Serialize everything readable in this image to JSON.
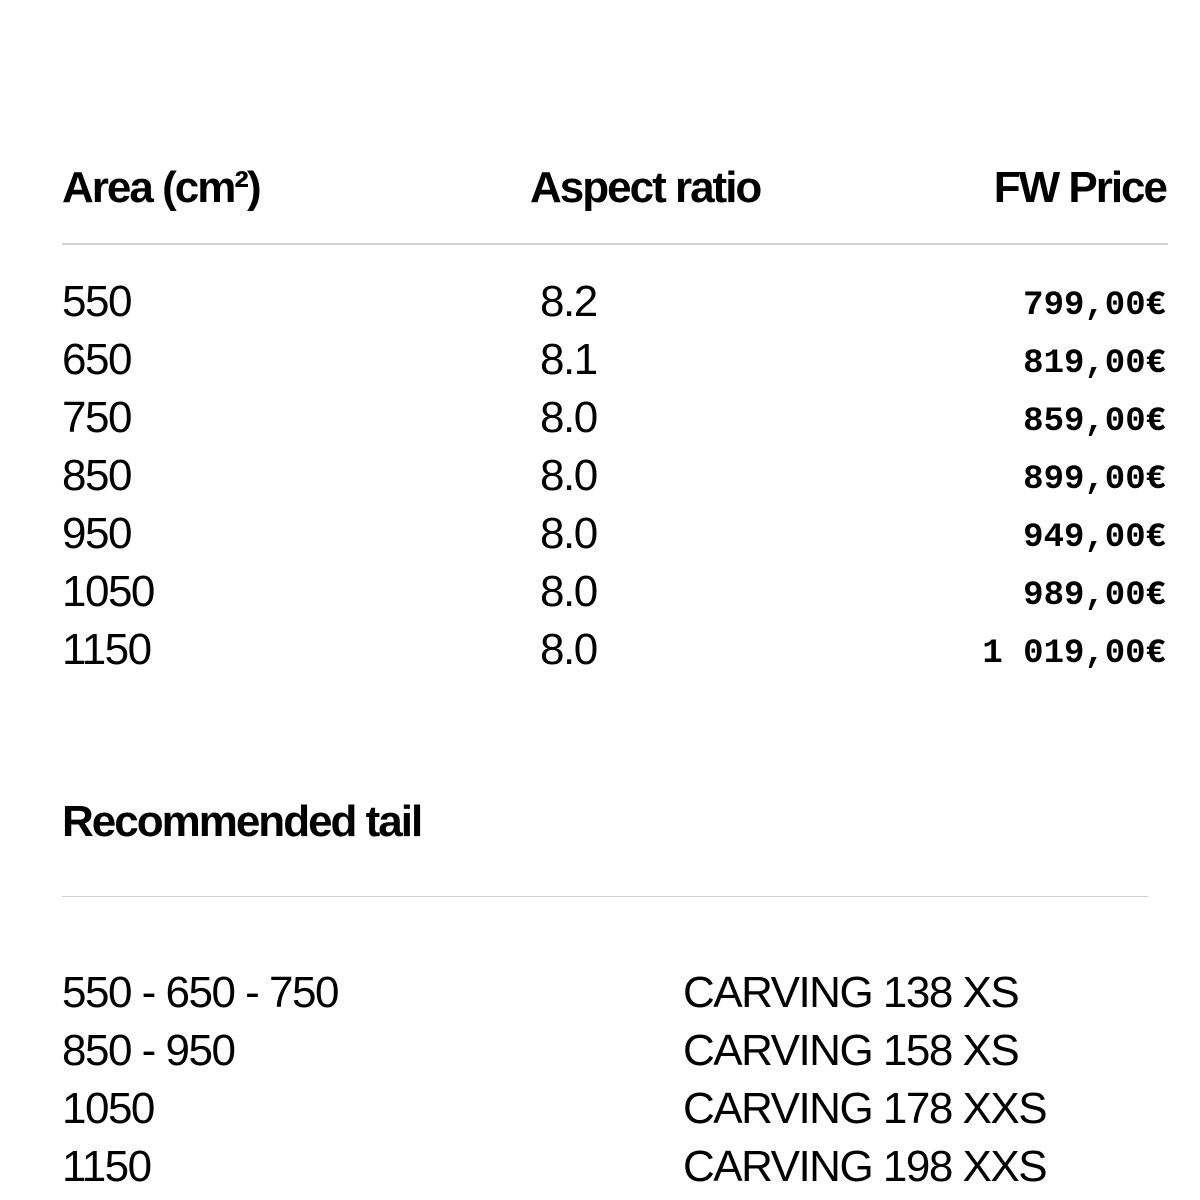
{
  "table": {
    "headers": [
      "Area (cm²)",
      "Aspect ratio",
      "FW Price"
    ],
    "rows": [
      [
        "550",
        "8.2",
        "799,00€"
      ],
      [
        "650",
        "8.1",
        "819,00€"
      ],
      [
        "750",
        "8.0",
        "859,00€"
      ],
      [
        "850",
        "8.0",
        "899,00€"
      ],
      [
        "950",
        "8.0",
        "949,00€"
      ],
      [
        "1050",
        "8.0",
        "989,00€"
      ],
      [
        "1150",
        "8.0",
        "1 019,00€"
      ]
    ]
  },
  "tail": {
    "title": "Recommended tail",
    "rows": [
      [
        "550 - 650 - 750",
        "CARVING 138 XS"
      ],
      [
        "850 - 950",
        "CARVING 158 XS"
      ],
      [
        "1050",
        "CARVING 178 XXS"
      ],
      [
        "1150",
        "CARVING 198 XXS"
      ]
    ]
  }
}
